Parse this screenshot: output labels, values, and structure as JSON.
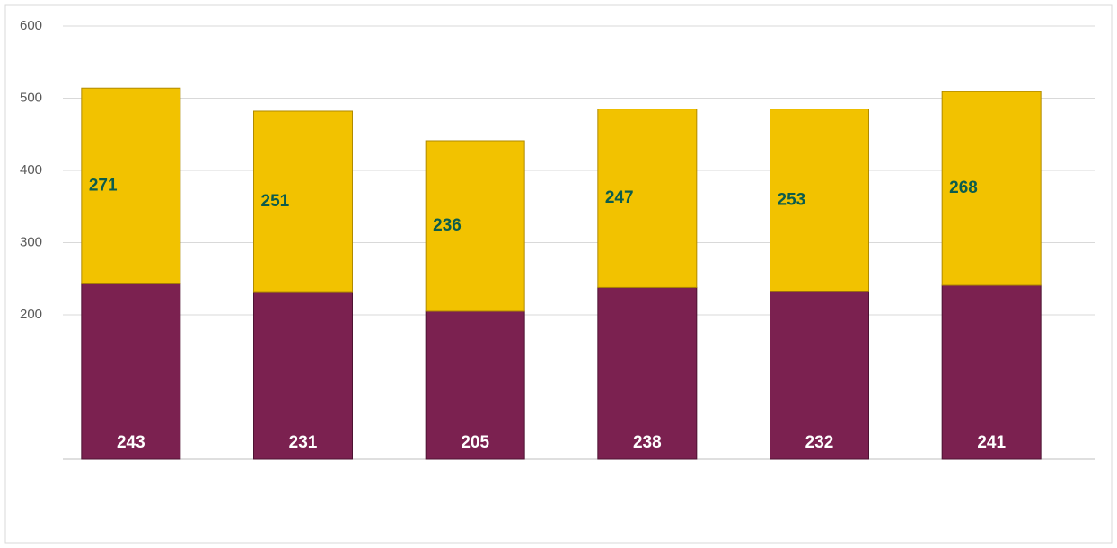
{
  "chart_data": {
    "type": "stacked_bar",
    "categories": [
      null,
      null,
      null,
      null,
      null,
      null
    ],
    "series": [
      {
        "color": "#7b2150",
        "values": [
          243,
          231,
          205,
          238,
          232,
          241
        ]
      },
      {
        "color": "#f2c200",
        "values": [
          271,
          251,
          236,
          247,
          253,
          268
        ]
      }
    ],
    "ylim": [
      0,
      600
    ],
    "yticks": [
      200,
      300,
      400,
      500,
      600
    ],
    "grid": true
  }
}
